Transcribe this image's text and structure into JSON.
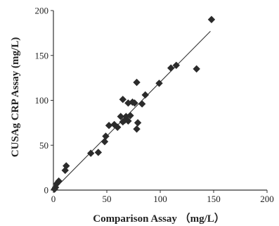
{
  "chart_data": {
    "type": "scatter",
    "title": "",
    "xlabel": "Comparison Assay （mg/L）",
    "ylabel": "CUSAg CRP Assay (mg/L)",
    "xlim": [
      0,
      200
    ],
    "ylim": [
      0,
      200
    ],
    "xticks": [
      "0",
      "50",
      "100",
      "150",
      "200"
    ],
    "yticks": [
      "0",
      "50",
      "100",
      "150",
      "200"
    ],
    "grid": false,
    "legend": "none",
    "marker": "diamond",
    "marker_color": "#2b2b2b",
    "line_color": "#333333",
    "points": [
      {
        "x": 1,
        "y": 1
      },
      {
        "x": 2,
        "y": 3
      },
      {
        "x": 3,
        "y": 7
      },
      {
        "x": 5,
        "y": 10
      },
      {
        "x": 11,
        "y": 22
      },
      {
        "x": 12,
        "y": 27
      },
      {
        "x": 35,
        "y": 41
      },
      {
        "x": 42,
        "y": 42
      },
      {
        "x": 48,
        "y": 54
      },
      {
        "x": 49,
        "y": 60
      },
      {
        "x": 52,
        "y": 72
      },
      {
        "x": 57,
        "y": 73
      },
      {
        "x": 60,
        "y": 70
      },
      {
        "x": 63,
        "y": 82
      },
      {
        "x": 65,
        "y": 76
      },
      {
        "x": 65,
        "y": 101
      },
      {
        "x": 67,
        "y": 78
      },
      {
        "x": 68,
        "y": 82
      },
      {
        "x": 70,
        "y": 77
      },
      {
        "x": 70,
        "y": 97
      },
      {
        "x": 72,
        "y": 83
      },
      {
        "x": 74,
        "y": 98
      },
      {
        "x": 76,
        "y": 97
      },
      {
        "x": 78,
        "y": 68
      },
      {
        "x": 79,
        "y": 75
      },
      {
        "x": 78,
        "y": 120
      },
      {
        "x": 83,
        "y": 96
      },
      {
        "x": 86,
        "y": 106
      },
      {
        "x": 99,
        "y": 119
      },
      {
        "x": 110,
        "y": 136
      },
      {
        "x": 115,
        "y": 139
      },
      {
        "x": 134,
        "y": 135
      },
      {
        "x": 148,
        "y": 190
      }
    ],
    "fit_line": {
      "x": [
        0,
        147
      ],
      "y": [
        0,
        177
      ]
    }
  }
}
